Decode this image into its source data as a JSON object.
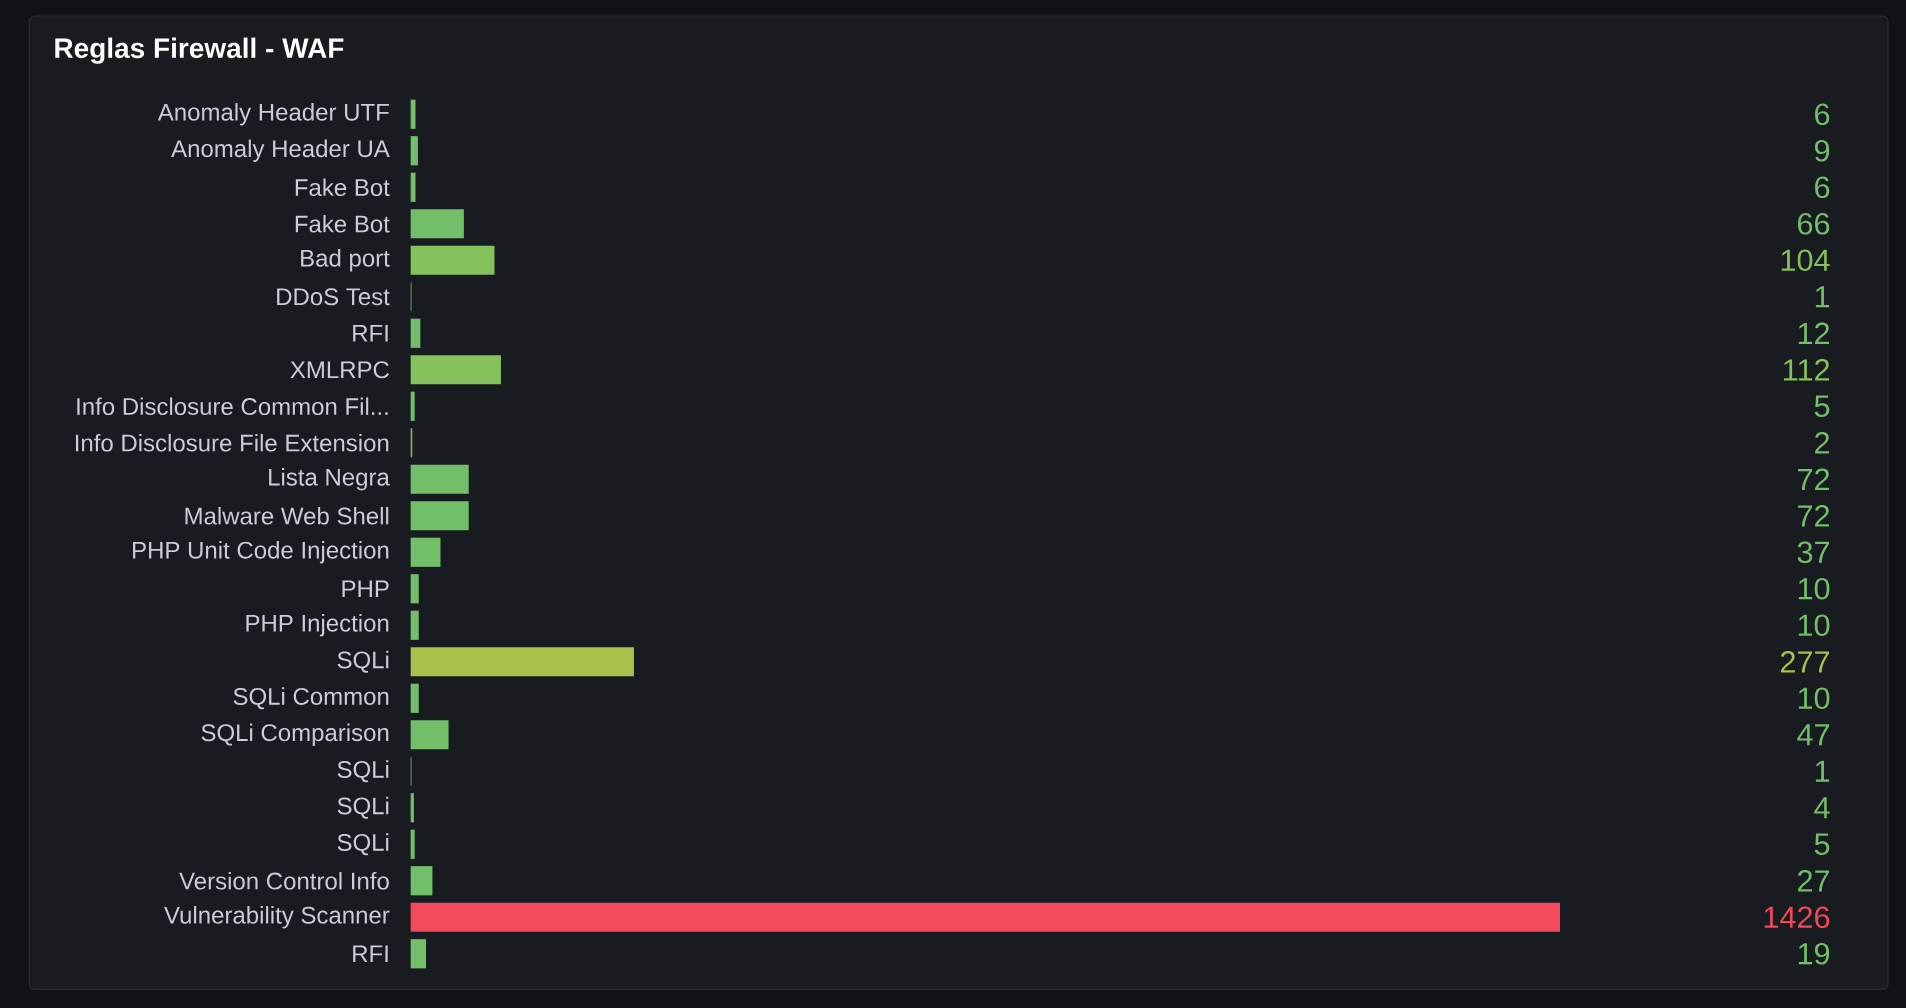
{
  "chart_data": {
    "type": "bar",
    "orientation": "horizontal",
    "title": "Reglas Firewall - WAF",
    "data_labels": true,
    "categories": [
      "Anomaly Header UTF",
      "Anomaly Header UA",
      "Fake Bot",
      "Fake Bot",
      "Bad port",
      "DDoS Test",
      "RFI",
      "XMLRPC",
      "Info Disclosure Common Fil...",
      "Info Disclosure File Extension",
      "Lista Negra",
      "Malware Web Shell",
      "PHP Unit Code Injection",
      "PHP",
      "PHP Injection",
      "SQLi",
      "SQLi Common",
      "SQLi Comparison",
      "SQLi",
      "SQLi",
      "SQLi",
      "Version Control Info",
      "Vulnerability Scanner",
      "RFI"
    ],
    "values": [
      6,
      9,
      6,
      66,
      104,
      1,
      12,
      112,
      5,
      2,
      72,
      72,
      37,
      10,
      10,
      277,
      10,
      47,
      1,
      4,
      5,
      27,
      1426,
      19
    ],
    "colors": [
      "#73bf69",
      "#73bf69",
      "#73bf69",
      "#73bf69",
      "#86c25c",
      "#73bf69",
      "#73bf69",
      "#86c25c",
      "#73bf69",
      "#73bf69",
      "#73bf69",
      "#73bf69",
      "#73bf69",
      "#73bf69",
      "#73bf69",
      "#a9c24b",
      "#73bf69",
      "#73bf69",
      "#73bf69",
      "#73bf69",
      "#73bf69",
      "#73bf69",
      "#f2495c",
      "#73bf69"
    ]
  }
}
